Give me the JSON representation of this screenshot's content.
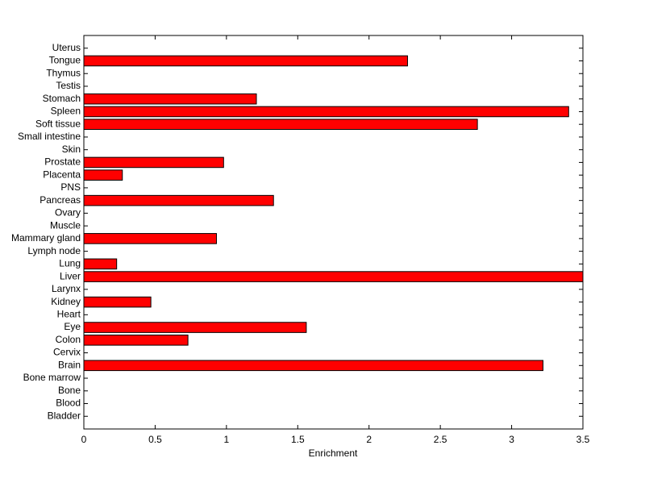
{
  "chart_data": {
    "type": "barh",
    "xlabel": "Enrichment",
    "categories": [
      "Bladder",
      "Blood",
      "Bone",
      "Bone marrow",
      "Brain",
      "Cervix",
      "Colon",
      "Eye",
      "Heart",
      "Kidney",
      "Larynx",
      "Liver",
      "Lung",
      "Lymph node",
      "Mammary gland",
      "Muscle",
      "Ovary",
      "Pancreas",
      "PNS",
      "Placenta",
      "Prostate",
      "Skin",
      "Small intestine",
      "Soft tissue",
      "Spleen",
      "Stomach",
      "Testis",
      "Thymus",
      "Tongue",
      "Uterus"
    ],
    "values": [
      0,
      0,
      0,
      0,
      3.22,
      0,
      0.73,
      1.56,
      0,
      0.47,
      0,
      3.5,
      0.23,
      0,
      0.93,
      0,
      0,
      1.33,
      0,
      0.27,
      0.98,
      0,
      0,
      2.76,
      3.4,
      1.21,
      0,
      0,
      2.27,
      0
    ],
    "color": "#ff0000",
    "xlim": [
      0,
      3.5
    ],
    "xticks": [
      0,
      0.5,
      1,
      1.5,
      2,
      2.5,
      3,
      3.5
    ]
  }
}
